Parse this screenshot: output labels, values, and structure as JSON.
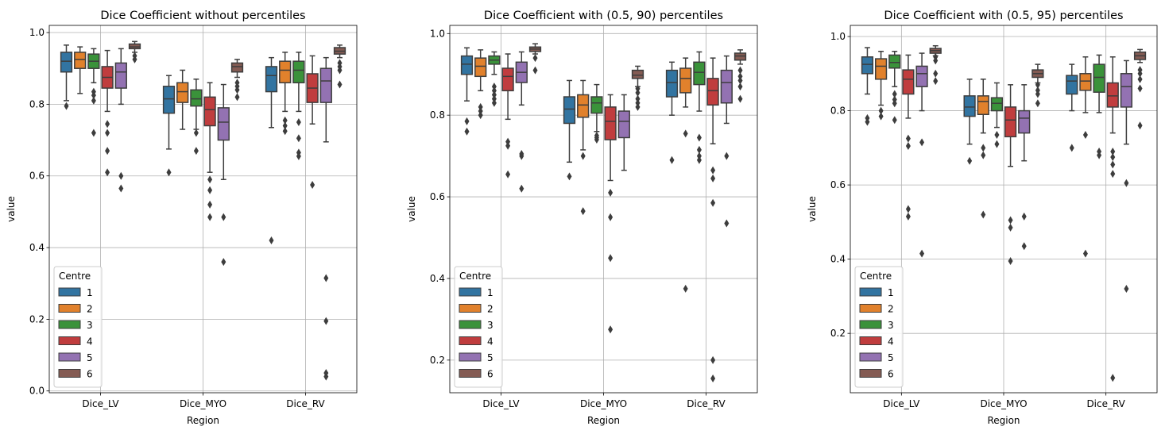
{
  "colors": {
    "centres": [
      "#3274a1",
      "#e1812c",
      "#3a923a",
      "#c03d3e",
      "#9372b2",
      "#845b53"
    ],
    "box_edge": "#3d3d3d",
    "grid": "#b0b0b0"
  },
  "chart_data": [
    {
      "type": "box",
      "title": "Dice Coefficient without percentiles",
      "xlabel": "Region",
      "ylabel": "value",
      "categories": [
        "Dice_LV",
        "Dice_MYO",
        "Dice_RV"
      ],
      "ylim": [
        -0.005,
        1.02
      ],
      "yticks": [
        0.0,
        0.2,
        0.4,
        0.6,
        0.8,
        1.0
      ],
      "ytick_labels": [
        "0.0",
        "0.2",
        "0.4",
        "0.6",
        "0.8",
        "1.0"
      ],
      "grid": true,
      "legend": {
        "title": "Centre",
        "position": "lower-left",
        "labels": [
          "1",
          "2",
          "3",
          "4",
          "5",
          "6"
        ]
      },
      "boxes": [
        [
          {
            "wl": 0.81,
            "q1": 0.89,
            "med": 0.92,
            "q3": 0.945,
            "wh": 0.965,
            "out": [
              0.795
            ]
          },
          {
            "wl": 0.83,
            "q1": 0.9,
            "med": 0.925,
            "q3": 0.945,
            "wh": 0.96,
            "out": []
          },
          {
            "wl": 0.86,
            "q1": 0.9,
            "med": 0.92,
            "q3": 0.94,
            "wh": 0.955,
            "out": [
              0.835,
              0.825,
              0.81,
              0.72
            ]
          },
          {
            "wl": 0.78,
            "q1": 0.845,
            "med": 0.875,
            "q3": 0.905,
            "wh": 0.95,
            "out": [
              0.745,
              0.72,
              0.67,
              0.61
            ]
          },
          {
            "wl": 0.8,
            "q1": 0.845,
            "med": 0.89,
            "q3": 0.915,
            "wh": 0.955,
            "out": [
              0.6,
              0.565
            ]
          },
          {
            "wl": 0.945,
            "q1": 0.955,
            "med": 0.96,
            "q3": 0.968,
            "wh": 0.975,
            "out": [
              0.935,
              0.925
            ]
          }
        ],
        [
          {
            "wl": 0.675,
            "q1": 0.775,
            "med": 0.815,
            "q3": 0.85,
            "wh": 0.88,
            "out": [
              0.61
            ]
          },
          {
            "wl": 0.73,
            "q1": 0.805,
            "med": 0.835,
            "q3": 0.86,
            "wh": 0.895,
            "out": []
          },
          {
            "wl": 0.73,
            "q1": 0.795,
            "med": 0.815,
            "q3": 0.84,
            "wh": 0.87,
            "out": [
              0.72,
              0.67
            ]
          },
          {
            "wl": 0.61,
            "q1": 0.74,
            "med": 0.785,
            "q3": 0.82,
            "wh": 0.86,
            "out": [
              0.59,
              0.56,
              0.52,
              0.485
            ]
          },
          {
            "wl": 0.59,
            "q1": 0.7,
            "med": 0.75,
            "q3": 0.79,
            "wh": 0.855,
            "out": [
              0.485,
              0.36
            ]
          },
          {
            "wl": 0.875,
            "q1": 0.89,
            "med": 0.905,
            "q3": 0.915,
            "wh": 0.925,
            "out": [
              0.86,
              0.85,
              0.84,
              0.82
            ]
          }
        ],
        [
          {
            "wl": 0.735,
            "q1": 0.835,
            "med": 0.88,
            "q3": 0.905,
            "wh": 0.93,
            "out": [
              0.42
            ]
          },
          {
            "wl": 0.78,
            "q1": 0.86,
            "med": 0.895,
            "q3": 0.92,
            "wh": 0.945,
            "out": [
              0.755,
              0.74,
              0.725
            ]
          },
          {
            "wl": 0.78,
            "q1": 0.86,
            "med": 0.895,
            "q3": 0.92,
            "wh": 0.945,
            "out": [
              0.75,
              0.705,
              0.665,
              0.655
            ]
          },
          {
            "wl": 0.745,
            "q1": 0.805,
            "med": 0.845,
            "q3": 0.885,
            "wh": 0.935,
            "out": [
              0.575
            ]
          },
          {
            "wl": 0.695,
            "q1": 0.805,
            "med": 0.865,
            "q3": 0.9,
            "wh": 0.93,
            "out": [
              0.315,
              0.195,
              0.05,
              0.04
            ]
          },
          {
            "wl": 0.93,
            "q1": 0.94,
            "med": 0.948,
            "q3": 0.958,
            "wh": 0.965,
            "out": [
              0.915,
              0.905,
              0.895,
              0.855
            ]
          }
        ]
      ]
    },
    {
      "type": "box",
      "title": "Dice Coefficient with (0.5, 90) percentiles",
      "xlabel": "Region",
      "ylabel": "value",
      "categories": [
        "Dice_LV",
        "Dice_MYO",
        "Dice_RV"
      ],
      "ylim": [
        0.12,
        1.02
      ],
      "yticks": [
        0.2,
        0.4,
        0.6,
        0.8,
        1.0
      ],
      "ytick_labels": [
        "0.2",
        "0.4",
        "0.6",
        "0.8",
        "1.0"
      ],
      "grid": true,
      "legend": {
        "title": "Centre",
        "position": "lower-left",
        "labels": [
          "1",
          "2",
          "3",
          "4",
          "5",
          "6"
        ]
      },
      "boxes": [
        [
          {
            "wl": 0.835,
            "q1": 0.9,
            "med": 0.925,
            "q3": 0.945,
            "wh": 0.965,
            "out": [
              0.785,
              0.76
            ]
          },
          {
            "wl": 0.86,
            "q1": 0.895,
            "med": 0.92,
            "q3": 0.94,
            "wh": 0.96,
            "out": [
              0.82,
              0.81,
              0.8
            ]
          },
          {
            "wl": 0.9,
            "q1": 0.925,
            "med": 0.935,
            "q3": 0.945,
            "wh": 0.955,
            "out": [
              0.87,
              0.86,
              0.85,
              0.84,
              0.83
            ]
          },
          {
            "wl": 0.79,
            "q1": 0.86,
            "med": 0.895,
            "q3": 0.915,
            "wh": 0.95,
            "out": [
              0.735,
              0.725,
              0.655
            ]
          },
          {
            "wl": 0.825,
            "q1": 0.88,
            "med": 0.905,
            "q3": 0.93,
            "wh": 0.955,
            "out": [
              0.705,
              0.7,
              0.62
            ]
          },
          {
            "wl": 0.95,
            "q1": 0.956,
            "med": 0.962,
            "q3": 0.967,
            "wh": 0.975,
            "out": [
              0.94,
              0.91
            ]
          }
        ],
        [
          {
            "wl": 0.685,
            "q1": 0.78,
            "med": 0.815,
            "q3": 0.845,
            "wh": 0.885,
            "out": [
              0.65
            ]
          },
          {
            "wl": 0.715,
            "q1": 0.795,
            "med": 0.825,
            "q3": 0.85,
            "wh": 0.885,
            "out": [
              0.7,
              0.565
            ]
          },
          {
            "wl": 0.76,
            "q1": 0.805,
            "med": 0.83,
            "q3": 0.845,
            "wh": 0.875,
            "out": [
              0.75,
              0.745,
              0.74
            ]
          },
          {
            "wl": 0.64,
            "q1": 0.74,
            "med": 0.785,
            "q3": 0.82,
            "wh": 0.85,
            "out": [
              0.61,
              0.55,
              0.45,
              0.275
            ]
          },
          {
            "wl": 0.665,
            "q1": 0.745,
            "med": 0.785,
            "q3": 0.81,
            "wh": 0.85,
            "out": []
          },
          {
            "wl": 0.87,
            "q1": 0.89,
            "med": 0.898,
            "q3": 0.91,
            "wh": 0.92,
            "out": [
              0.865,
              0.855,
              0.84,
              0.83,
              0.82
            ]
          }
        ],
        [
          {
            "wl": 0.8,
            "q1": 0.845,
            "med": 0.88,
            "q3": 0.91,
            "wh": 0.93,
            "out": [
              0.69
            ]
          },
          {
            "wl": 0.82,
            "q1": 0.855,
            "med": 0.89,
            "q3": 0.915,
            "wh": 0.94,
            "out": [
              0.755,
              0.375
            ]
          },
          {
            "wl": 0.81,
            "q1": 0.875,
            "med": 0.905,
            "q3": 0.93,
            "wh": 0.955,
            "out": [
              0.745,
              0.715,
              0.7,
              0.69
            ]
          },
          {
            "wl": 0.73,
            "q1": 0.825,
            "med": 0.86,
            "q3": 0.89,
            "wh": 0.94,
            "out": [
              0.665,
              0.645,
              0.585,
              0.2,
              0.155
            ]
          },
          {
            "wl": 0.78,
            "q1": 0.83,
            "med": 0.88,
            "q3": 0.91,
            "wh": 0.945,
            "out": [
              0.7,
              0.535
            ]
          },
          {
            "wl": 0.925,
            "q1": 0.935,
            "med": 0.945,
            "q3": 0.952,
            "wh": 0.96,
            "out": [
              0.91,
              0.895,
              0.885,
              0.87,
              0.84
            ]
          }
        ]
      ]
    },
    {
      "type": "box",
      "title": "Dice Coefficient with (0.5, 95) percentiles",
      "xlabel": "Region",
      "ylabel": "value",
      "categories": [
        "Dice_LV",
        "Dice_MYO",
        "Dice_RV"
      ],
      "ylim": [
        0.04,
        1.03
      ],
      "yticks": [
        0.2,
        0.4,
        0.6,
        0.8,
        1.0
      ],
      "ytick_labels": [
        "0.2",
        "0.4",
        "0.6",
        "0.8",
        "1.0"
      ],
      "grid": true,
      "legend": {
        "title": "Centre",
        "position": "lower-left",
        "labels": [
          "1",
          "2",
          "3",
          "4",
          "5",
          "6"
        ]
      },
      "boxes": [
        [
          {
            "wl": 0.845,
            "q1": 0.9,
            "med": 0.925,
            "q3": 0.945,
            "wh": 0.97,
            "out": [
              0.78,
              0.77
            ]
          },
          {
            "wl": 0.815,
            "q1": 0.885,
            "med": 0.92,
            "q3": 0.94,
            "wh": 0.96,
            "out": [
              0.8,
              0.785
            ]
          },
          {
            "wl": 0.865,
            "q1": 0.915,
            "med": 0.93,
            "q3": 0.95,
            "wh": 0.96,
            "out": [
              0.845,
              0.83,
              0.82,
              0.775
            ]
          },
          {
            "wl": 0.78,
            "q1": 0.845,
            "med": 0.885,
            "q3": 0.91,
            "wh": 0.95,
            "out": [
              0.725,
              0.705,
              0.535,
              0.515
            ]
          },
          {
            "wl": 0.8,
            "q1": 0.865,
            "med": 0.9,
            "q3": 0.92,
            "wh": 0.955,
            "out": [
              0.715,
              0.415
            ]
          },
          {
            "wl": 0.948,
            "q1": 0.955,
            "med": 0.962,
            "q3": 0.968,
            "wh": 0.975,
            "out": [
              0.945,
              0.935,
              0.9,
              0.88
            ]
          }
        ],
        [
          {
            "wl": 0.71,
            "q1": 0.785,
            "med": 0.81,
            "q3": 0.84,
            "wh": 0.885,
            "out": [
              0.665
            ]
          },
          {
            "wl": 0.74,
            "q1": 0.79,
            "med": 0.825,
            "q3": 0.84,
            "wh": 0.885,
            "out": [
              0.7,
              0.68,
              0.52
            ]
          },
          {
            "wl": 0.755,
            "q1": 0.8,
            "med": 0.82,
            "q3": 0.835,
            "wh": 0.875,
            "out": [
              0.735,
              0.71
            ]
          },
          {
            "wl": 0.65,
            "q1": 0.73,
            "med": 0.775,
            "q3": 0.81,
            "wh": 0.87,
            "out": [
              0.505,
              0.485,
              0.395
            ]
          },
          {
            "wl": 0.665,
            "q1": 0.74,
            "med": 0.78,
            "q3": 0.8,
            "wh": 0.87,
            "out": [
              0.515,
              0.435
            ]
          },
          {
            "wl": 0.875,
            "q1": 0.89,
            "med": 0.9,
            "q3": 0.91,
            "wh": 0.925,
            "out": [
              0.87,
              0.855,
              0.845,
              0.82
            ]
          }
        ],
        [
          {
            "wl": 0.8,
            "q1": 0.845,
            "med": 0.88,
            "q3": 0.895,
            "wh": 0.925,
            "out": [
              0.7
            ]
          },
          {
            "wl": 0.795,
            "q1": 0.855,
            "med": 0.88,
            "q3": 0.9,
            "wh": 0.945,
            "out": [
              0.735,
              0.415
            ]
          },
          {
            "wl": 0.795,
            "q1": 0.85,
            "med": 0.89,
            "q3": 0.925,
            "wh": 0.95,
            "out": [
              0.69,
              0.68
            ]
          },
          {
            "wl": 0.74,
            "q1": 0.81,
            "med": 0.84,
            "q3": 0.875,
            "wh": 0.945,
            "out": [
              0.69,
              0.675,
              0.655,
              0.63,
              0.08
            ]
          },
          {
            "wl": 0.71,
            "q1": 0.81,
            "med": 0.865,
            "q3": 0.9,
            "wh": 0.935,
            "out": [
              0.605,
              0.32
            ]
          },
          {
            "wl": 0.93,
            "q1": 0.938,
            "med": 0.948,
            "q3": 0.958,
            "wh": 0.965,
            "out": [
              0.91,
              0.9,
              0.885,
              0.86,
              0.76
            ]
          }
        ]
      ]
    }
  ]
}
